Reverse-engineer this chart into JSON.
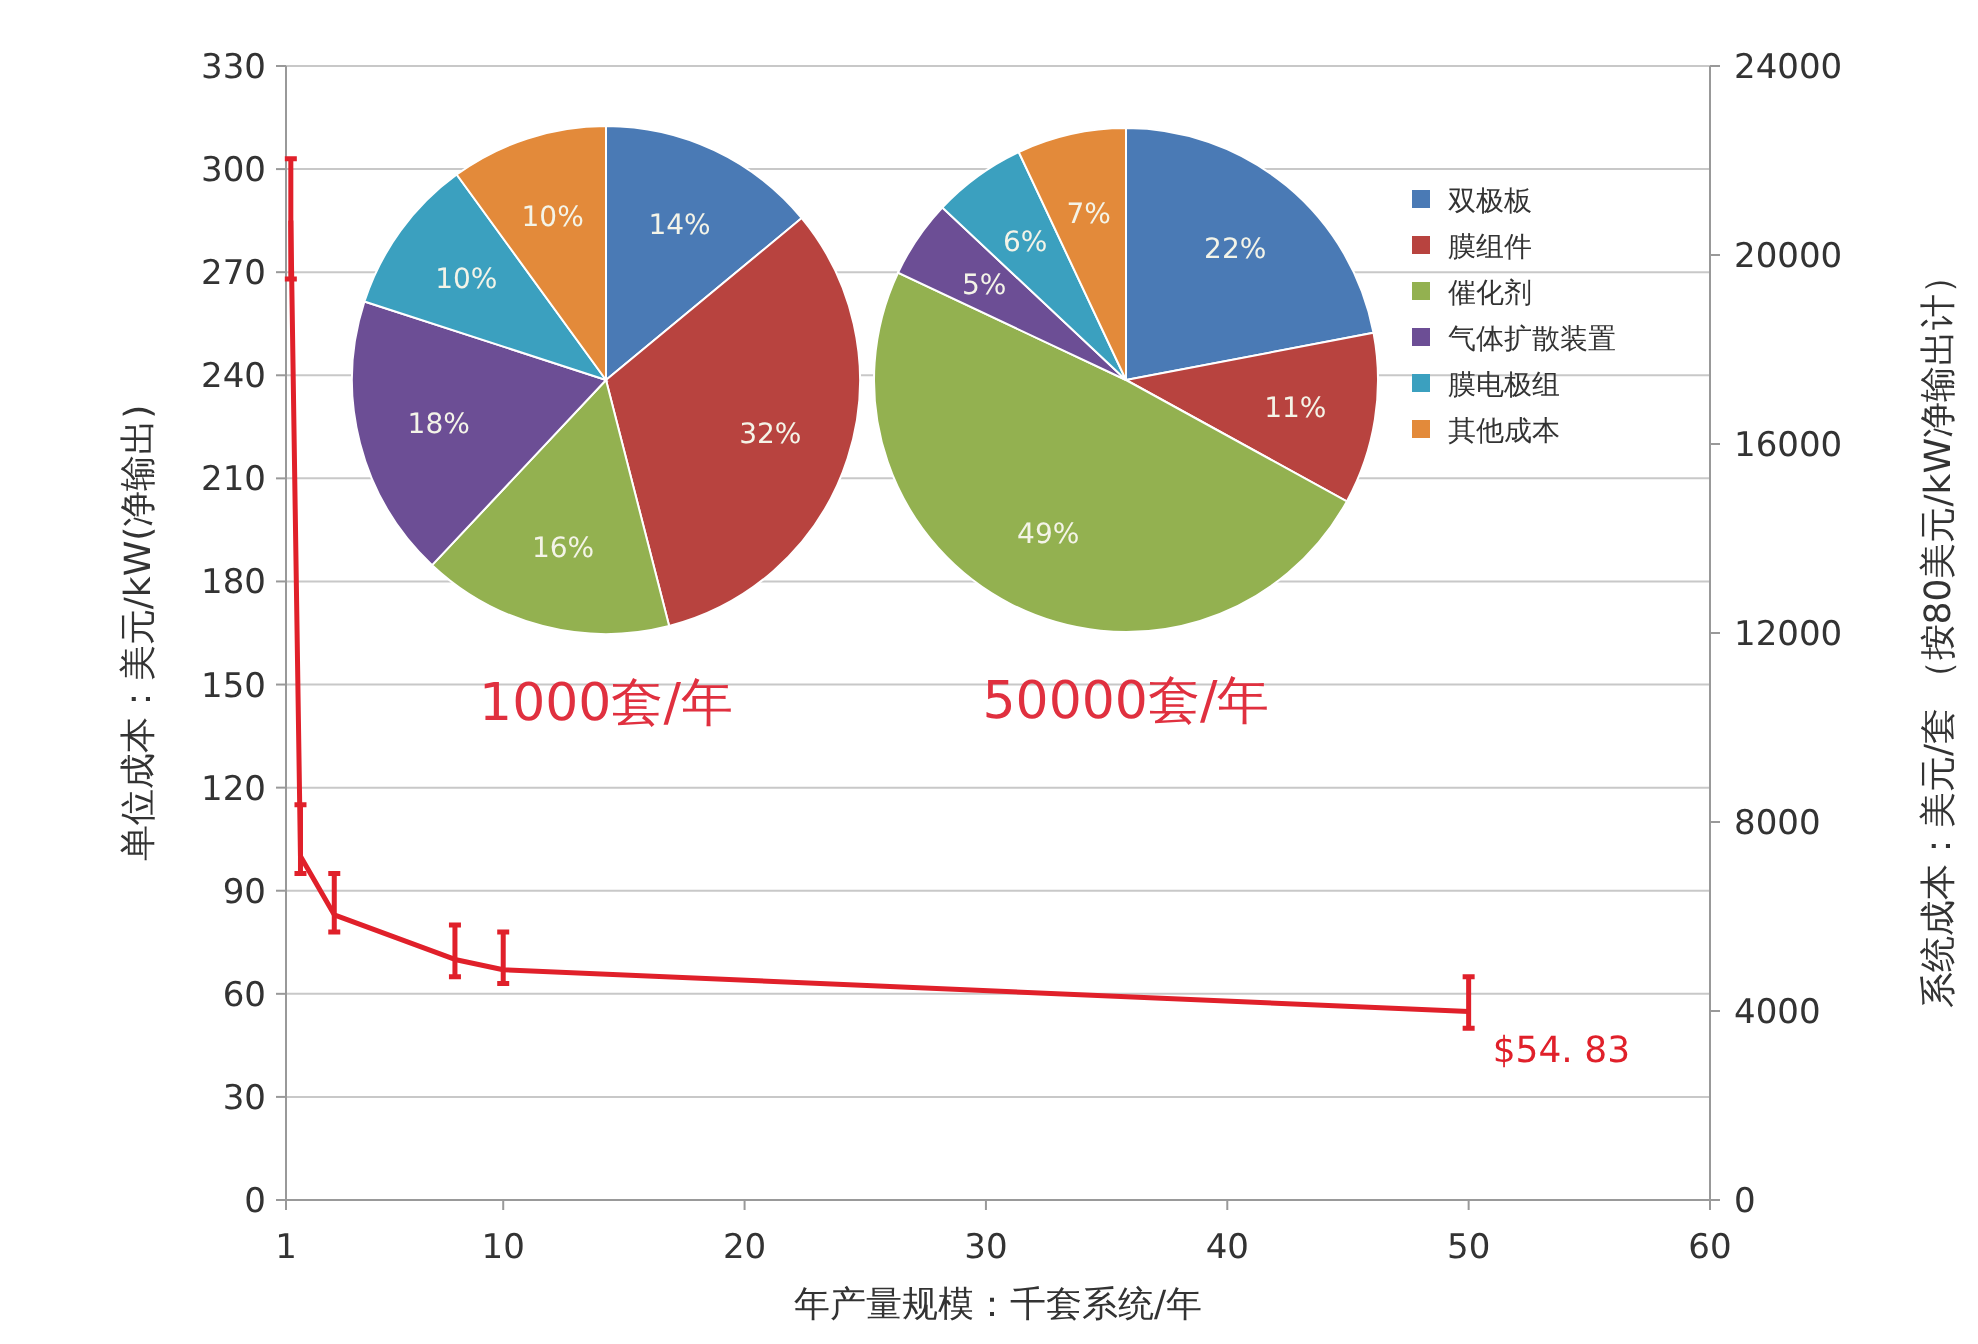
{
  "chart_data": [
    {
      "type": "line",
      "xlabel": "年产量规模：千套系统/年",
      "ylabel": "单位成本：美元/kW(净输出)",
      "y2label": "系统成本：美元/套 （按80美元/kW净输出计）",
      "x": [
        1.2,
        1.6,
        3,
        8,
        10,
        50
      ],
      "series": [
        {
          "color": "#e0202a",
          "values": [
            285,
            100,
            83,
            70,
            67,
            54.83
          ],
          "errors": [
            [
              268,
              303
            ],
            [
              95,
              115
            ],
            [
              78,
              95
            ],
            [
              65,
              80
            ],
            [
              63,
              78
            ],
            [
              50,
              65
            ]
          ]
        }
      ],
      "xlim": [
        1,
        60
      ],
      "xticks": [
        1,
        10,
        20,
        30,
        40,
        50,
        60
      ],
      "ylim": [
        0,
        330
      ],
      "yticks": [
        0,
        30,
        60,
        90,
        120,
        150,
        180,
        210,
        240,
        270,
        300,
        330
      ],
      "y2lim": [
        0,
        24000
      ],
      "y2ticks": [
        0,
        4000,
        8000,
        12000,
        16000,
        20000,
        24000
      ],
      "grid": "y",
      "marker": "none",
      "line_style": "solid",
      "annotations": [
        {
          "text": "$54. 83",
          "x": 50,
          "y": 54.83
        }
      ]
    },
    {
      "type": "pie",
      "title": "1000套/年",
      "categories": [
        null,
        null,
        null,
        null,
        null,
        null
      ],
      "values": [
        14,
        32,
        16,
        18,
        10,
        10
      ],
      "value_labels": [
        "14%",
        "32%",
        "16%",
        "18%",
        "10%",
        "10%"
      ],
      "colors": [
        "#4a7ab5",
        "#b8433f",
        "#93b150",
        "#6c4e95",
        "#3ba0bf",
        "#e38a3a"
      ],
      "legend": false
    },
    {
      "type": "pie",
      "title": "50000套/年",
      "categories": [
        "双极板",
        "膜组件",
        "催化剂",
        "气体扩散装置",
        "膜电极组",
        "其他成本"
      ],
      "values": [
        22,
        11,
        49,
        5,
        6,
        7
      ],
      "value_labels": [
        "22%",
        "11%",
        "49%",
        "5%",
        "6%",
        "7%"
      ],
      "colors": [
        "#4a7ab5",
        "#b8433f",
        "#93b150",
        "#6c4e95",
        "#3ba0bf",
        "#e38a3a"
      ],
      "legend": "right"
    }
  ]
}
